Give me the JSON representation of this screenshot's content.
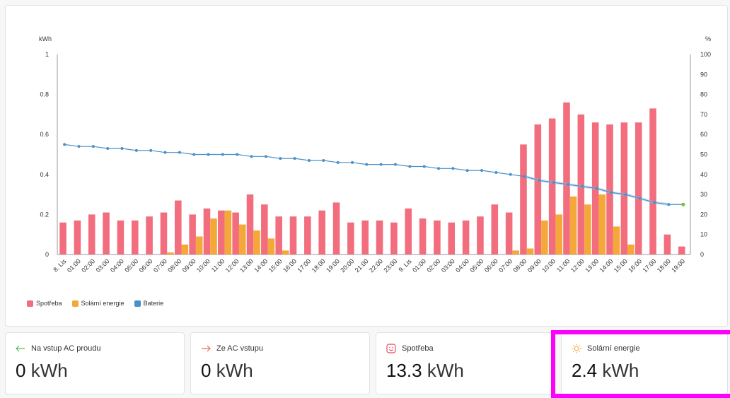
{
  "chart_data": {
    "type": "bar",
    "ylabel_left": "kWh",
    "ylabel_right": "%",
    "ylim_left": [
      0,
      1
    ],
    "ylim_right": [
      0,
      100
    ],
    "left_ticks": [
      "0",
      "0.2",
      "0.4",
      "0.6",
      "0.8",
      "1"
    ],
    "right_ticks": [
      "0",
      "10",
      "20",
      "30",
      "40",
      "50",
      "60",
      "70",
      "80",
      "90",
      "100"
    ],
    "categories": [
      "8. Lis",
      "01:00",
      "02:00",
      "03:00",
      "04:00",
      "05:00",
      "06:00",
      "07:00",
      "08:00",
      "09:00",
      "10:00",
      "11:00",
      "12:00",
      "13:00",
      "14:00",
      "15:00",
      "16:00",
      "17:00",
      "18:00",
      "19:00",
      "20:00",
      "21:00",
      "22:00",
      "23:00",
      "9. Lis",
      "01:00",
      "02:00",
      "03:00",
      "04:00",
      "05:00",
      "06:00",
      "07:00",
      "08:00",
      "09:00",
      "10:00",
      "11:00",
      "12:00",
      "13:00",
      "14:00",
      "15:00",
      "16:00",
      "17:00",
      "18:00",
      "19:00"
    ],
    "series": [
      {
        "name": "Spotřeba",
        "type": "bar",
        "color": "#f26d7d",
        "values": [
          0.16,
          0.17,
          0.2,
          0.21,
          0.17,
          0.17,
          0.19,
          0.21,
          0.27,
          0.2,
          0.23,
          0.22,
          0.21,
          0.3,
          0.25,
          0.19,
          0.19,
          0.19,
          0.22,
          0.26,
          0.16,
          0.17,
          0.17,
          0.16,
          0.23,
          0.18,
          0.17,
          0.16,
          0.17,
          0.19,
          0.25,
          0.21,
          0.55,
          0.65,
          0.68,
          0.76,
          0.7,
          0.66,
          0.65,
          0.66,
          0.66,
          0.73,
          0.1,
          0.04
        ]
      },
      {
        "name": "Solární energie",
        "type": "bar",
        "color": "#f5a83a",
        "values": [
          0,
          0,
          0,
          0,
          0,
          0,
          0,
          0.01,
          0.05,
          0.09,
          0.18,
          0.22,
          0.15,
          0.12,
          0.08,
          0.02,
          0,
          0,
          0,
          0,
          0,
          0,
          0,
          0,
          0,
          0,
          0,
          0,
          0,
          0,
          0,
          0.02,
          0.03,
          0.17,
          0.2,
          0.29,
          0.25,
          0.3,
          0.14,
          0.05,
          0,
          0,
          0,
          0
        ]
      },
      {
        "name": "Baterie",
        "type": "line",
        "axis": "right",
        "color": "#4a90c8",
        "values": [
          55,
          54,
          54,
          53,
          53,
          52,
          52,
          51,
          51,
          50,
          50,
          50,
          50,
          49,
          49,
          48,
          48,
          47,
          47,
          46,
          46,
          45,
          45,
          45,
          44,
          44,
          43,
          43,
          42,
          42,
          41,
          40,
          39,
          37,
          36,
          35,
          34,
          33,
          31,
          30,
          28,
          26,
          25,
          25
        ]
      }
    ]
  },
  "stats": [
    {
      "label": "Na vstup AC proudu",
      "value": "0",
      "unit": "kWh",
      "icon": "arrow-left-icon",
      "icon_color": "#5cb85c"
    },
    {
      "label": "Ze AC vstupu",
      "value": "0",
      "unit": "kWh",
      "icon": "arrow-right-icon",
      "icon_color": "#e8675e"
    },
    {
      "label": "Spotřeba",
      "value": "13.3",
      "unit": "kWh",
      "icon": "consumption-icon",
      "icon_color": "#e84b5a"
    },
    {
      "label": "Solární energie",
      "value": "2.4",
      "unit": "kWh",
      "icon": "sun-icon",
      "icon_color": "#f5a83a"
    }
  ],
  "highlight_color": "#ff00ff"
}
